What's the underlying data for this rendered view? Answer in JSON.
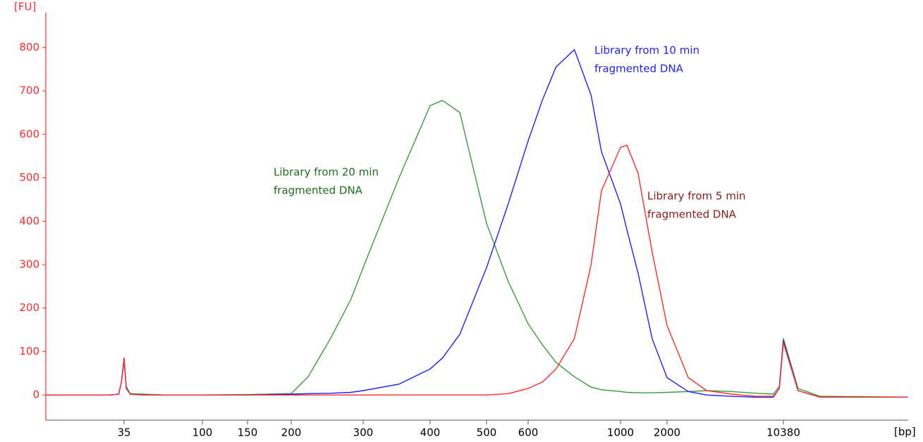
{
  "chart_data": {
    "type": "line",
    "ylabel": "[FU]",
    "xlabel": "[bp]",
    "ylim": [
      -58,
      880
    ],
    "yticks": [
      0,
      100,
      200,
      300,
      400,
      500,
      600,
      700,
      800
    ],
    "xlim": [
      15,
      17000
    ],
    "xticks": [
      35,
      100,
      150,
      200,
      300,
      400,
      500,
      600,
      1000,
      2000,
      10380
    ],
    "axis_color": "#ff2a2a",
    "x": [
      15,
      30,
      33,
      34,
      35,
      36,
      38,
      45,
      60,
      100,
      150,
      200,
      220,
      250,
      280,
      300,
      350,
      400,
      420,
      450,
      500,
      550,
      600,
      650,
      700,
      775,
      850,
      900,
      1000,
      1100,
      1300,
      1600,
      2000,
      2700,
      3500,
      5000,
      7000,
      9000,
      9800,
      10380,
      11000,
      12000,
      17000
    ],
    "series": [
      {
        "name": "Library from 20 min fragmented DNA",
        "color": "#3a9a3a",
        "values": [
          0,
          0,
          2,
          30,
          85,
          20,
          3,
          2,
          0,
          0,
          1,
          3,
          42,
          131,
          220,
          293,
          500,
          666,
          678,
          650,
          395,
          261,
          164,
          115,
          75,
          42,
          18,
          12,
          8,
          6,
          5,
          5,
          6,
          8,
          10,
          8,
          4,
          2,
          20,
          130,
          15,
          -3,
          -5
        ]
      },
      {
        "name": "Library from 10 min fragmented DNA",
        "color": "#1f1fff",
        "values": [
          0,
          0,
          2,
          30,
          80,
          15,
          2,
          0,
          0,
          0,
          0,
          2,
          3,
          4,
          6,
          10,
          25,
          60,
          85,
          140,
          293,
          440,
          585,
          680,
          755,
          795,
          690,
          560,
          440,
          380,
          280,
          130,
          40,
          8,
          0,
          -3,
          -5,
          -5,
          15,
          125,
          10,
          -5,
          -5
        ]
      },
      {
        "name": "Library from 5 min fragmented DNA",
        "color": "#ff2a2a",
        "values": [
          0,
          0,
          2,
          30,
          85,
          15,
          2,
          0,
          0,
          0,
          0,
          0,
          0,
          0,
          0,
          0,
          0,
          0,
          0,
          0,
          0,
          3,
          15,
          30,
          60,
          130,
          300,
          470,
          570,
          575,
          510,
          330,
          160,
          40,
          10,
          2,
          -3,
          -3,
          15,
          120,
          10,
          -5,
          -5
        ]
      }
    ],
    "annotations": [
      {
        "lines": [
          "Library from 10 min",
          "fragmented DNA"
        ],
        "color": "#1f1fff"
      },
      {
        "lines": [
          "Library from 20 min",
          "fragmented DNA"
        ],
        "color": "#1e6e1e"
      },
      {
        "lines": [
          "Library from 5 min",
          "fragmented DNA"
        ],
        "color": "#8b1a1a"
      }
    ]
  }
}
